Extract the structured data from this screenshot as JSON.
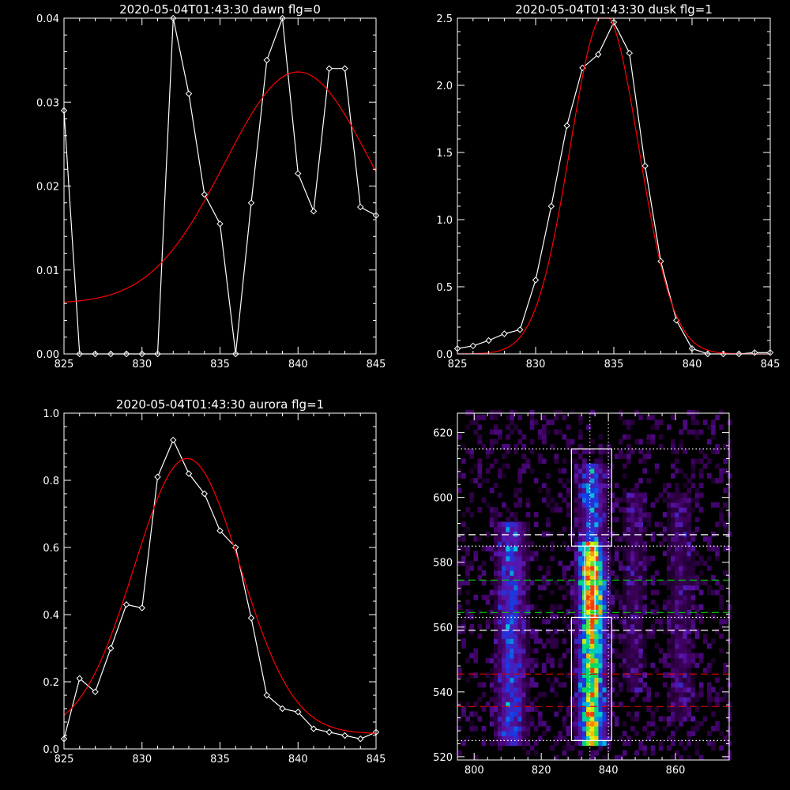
{
  "chart_data": [
    {
      "type": "line",
      "title": "2020-05-04T01:43:30 dawn flg=0",
      "xlim": [
        825,
        845
      ],
      "ylim": [
        0,
        0.04
      ],
      "xticks": [
        "825",
        "830",
        "835",
        "840",
        "845"
      ],
      "yticks": [
        "0.00",
        "0.01",
        "0.02",
        "0.03",
        "0.04"
      ],
      "series": [
        {
          "color": "#ffffff",
          "marker": "diamond",
          "x": [
            825,
            826,
            827,
            828,
            829,
            830,
            831,
            832,
            833,
            834,
            835,
            836,
            837,
            838,
            839,
            840,
            841,
            842,
            843,
            844,
            845
          ],
          "values": [
            0.029,
            0,
            0,
            0,
            0,
            0,
            0,
            0.04,
            0.031,
            0.019,
            0.0155,
            0,
            0.018,
            0.035,
            0.04,
            0.0215,
            0.017,
            0.034,
            0.034,
            0.0175,
            0.0165
          ]
        },
        {
          "color": "#ff0000",
          "fit": "gaussian",
          "peak": 0.0276,
          "center": 840.0,
          "sigma": 4.7,
          "baseline": 0.006,
          "xrange": [
            825,
            845
          ]
        }
      ]
    },
    {
      "type": "line",
      "title": "2020-05-04T01:43:30 dusk flg=1",
      "xlim": [
        825,
        845
      ],
      "ylim": [
        0,
        2.5
      ],
      "xticks": [
        "825",
        "830",
        "835",
        "840",
        "845"
      ],
      "yticks": [
        "0.0",
        "0.5",
        "1.0",
        "1.5",
        "2.0",
        "2.5"
      ],
      "series": [
        {
          "color": "#ffffff",
          "marker": "diamond",
          "x": [
            825,
            826,
            827,
            828,
            829,
            830,
            831,
            832,
            833,
            834,
            835,
            836,
            837,
            838,
            839,
            840,
            841,
            842,
            843,
            844,
            845
          ],
          "values": [
            0.04,
            0.06,
            0.1,
            0.15,
            0.18,
            0.55,
            1.1,
            1.7,
            2.13,
            2.23,
            2.47,
            2.24,
            1.4,
            0.69,
            0.25,
            0.04,
            0,
            0,
            0,
            0.01,
            0.01
          ]
        },
        {
          "color": "#ff0000",
          "fit": "gaussian",
          "peak": 2.53,
          "center": 834.4,
          "sigma": 2.2,
          "baseline": 0.0,
          "xrange": [
            825,
            845
          ]
        }
      ]
    },
    {
      "type": "line",
      "title": "2020-05-04T01:43:30 aurora flg=1",
      "xlim": [
        825,
        845
      ],
      "ylim": [
        0,
        1.0
      ],
      "xticks": [
        "825",
        "830",
        "835",
        "840",
        "845"
      ],
      "yticks": [
        "0.0",
        "0.2",
        "0.4",
        "0.6",
        "0.8",
        "1.0"
      ],
      "series": [
        {
          "color": "#ffffff",
          "marker": "diamond",
          "x": [
            825,
            826,
            827,
            828,
            829,
            830,
            831,
            832,
            833,
            834,
            835,
            836,
            837,
            838,
            839,
            840,
            841,
            842,
            843,
            844,
            845
          ],
          "values": [
            0.03,
            0.21,
            0.17,
            0.3,
            0.43,
            0.42,
            0.81,
            0.92,
            0.82,
            0.76,
            0.65,
            0.6,
            0.39,
            0.16,
            0.12,
            0.11,
            0.06,
            0.05,
            0.04,
            0.03,
            0.05
          ]
        },
        {
          "color": "#ff0000",
          "fit": "gaussian",
          "peak": 0.82,
          "center": 832.9,
          "sigma": 3.4,
          "baseline": 0.045,
          "xrange": [
            825,
            845
          ]
        }
      ]
    },
    {
      "type": "heatmap",
      "title": "",
      "xlim": [
        795,
        876
      ],
      "ylim": [
        519,
        626
      ],
      "xticks": [
        "800",
        "820",
        "840",
        "860"
      ],
      "yticks": [
        "520",
        "540",
        "560",
        "580",
        "600",
        "620"
      ],
      "colormap": "rainbow",
      "bands": [
        {
          "x": 810.5,
          "width": 3.0,
          "y_start": 523,
          "y_end": 592,
          "strength": 0.45
        },
        {
          "x": 834.5,
          "width": 2.6,
          "y_start": 523,
          "y_end": 610,
          "strength": 1.0
        },
        {
          "x": 847.0,
          "width": 2.5,
          "y_start": 540,
          "y_end": 600,
          "strength": 0.18
        },
        {
          "x": 861.0,
          "width": 3.0,
          "y_start": 530,
          "y_end": 600,
          "strength": 0.18
        }
      ],
      "boxes": [
        {
          "x": [
            829,
            841
          ],
          "y": [
            585,
            615
          ],
          "color": "#ffffff"
        },
        {
          "x": [
            829,
            841
          ],
          "y": [
            525,
            563
          ],
          "color": "#ffffff"
        },
        {
          "x": [
            833,
            836
          ],
          "y": [
            563,
            585
          ],
          "color": "#ffffff"
        }
      ],
      "hlines": [
        {
          "y": 615,
          "style": "dotted",
          "color": "#ffffff"
        },
        {
          "y": 588.5,
          "style": "dashed",
          "color": "#ffffff"
        },
        {
          "y": 585,
          "style": "dotted",
          "color": "#ffffff"
        },
        {
          "y": 574.5,
          "style": "dashed",
          "color": "#00cc00"
        },
        {
          "y": 564.5,
          "style": "dashed",
          "color": "#00cc00"
        },
        {
          "y": 563,
          "style": "dotted",
          "color": "#ffffff"
        },
        {
          "y": 559,
          "style": "dashed",
          "color": "#ffffff"
        },
        {
          "y": 545.5,
          "style": "dashed",
          "color": "#cc0000"
        },
        {
          "y": 535.5,
          "style": "dashed",
          "color": "#cc0000"
        },
        {
          "y": 525,
          "style": "dotted",
          "color": "#ffffff"
        }
      ],
      "vlines": [
        {
          "x": 834.5,
          "style": "dotted",
          "color": "#ffffff"
        },
        {
          "x": 840,
          "style": "dotted",
          "color": "#ffffff"
        }
      ]
    }
  ]
}
